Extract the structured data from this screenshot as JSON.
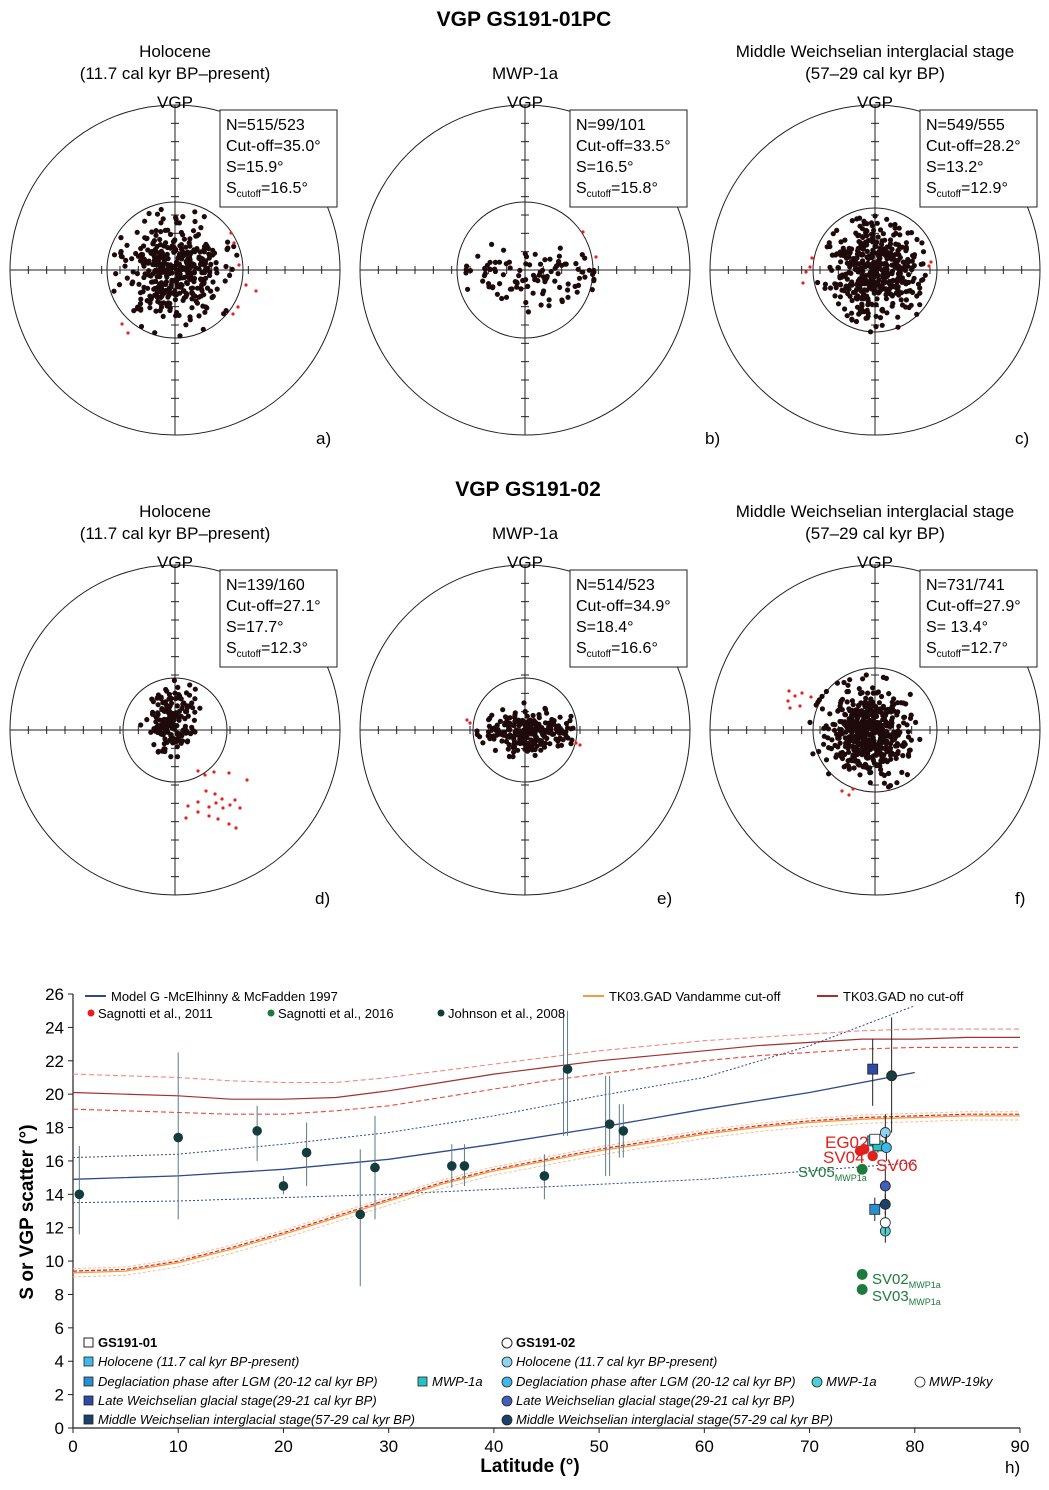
{
  "sections": [
    {
      "title": "VGP GS191-01PC"
    },
    {
      "title": "VGP GS191-02"
    }
  ],
  "panels": [
    {
      "header1": "Holocene",
      "header2": "(11.7 cal kyr BP–present)",
      "vgp": "VGP",
      "N": "N=515/523",
      "cutoff": "Cut-off=35.0°",
      "S": "S=15.9°",
      "scut_pre": "S",
      "scut_sub": "cutoff",
      "scut_val": "=16.5°",
      "letter": "a)",
      "stats": {
        "n_kept": 515,
        "n_total": 523,
        "cutoff_deg": 35.0,
        "S_deg": 15.9,
        "S_cutoff_deg": 16.5
      }
    },
    {
      "header1": "",
      "header2": "MWP-1a",
      "vgp": "VGP",
      "N": "N=99/101",
      "cutoff": "Cut-off=33.5°",
      "S": "S=16.5°",
      "scut_pre": "S",
      "scut_sub": "cutoff",
      "scut_val": "=15.8°",
      "letter": "b)",
      "stats": {
        "n_kept": 99,
        "n_total": 101,
        "cutoff_deg": 33.5,
        "S_deg": 16.5,
        "S_cutoff_deg": 15.8
      }
    },
    {
      "header1": "Middle Weichselian interglacial stage",
      "header2": "(57–29 cal kyr BP)",
      "vgp": "VGP",
      "N": "N=549/555",
      "cutoff": "Cut-off=28.2°",
      "S": "S=13.2°",
      "scut_pre": "S",
      "scut_sub": "cutoff",
      "scut_val": "=12.9°",
      "letter": "c)",
      "stats": {
        "n_kept": 549,
        "n_total": 555,
        "cutoff_deg": 28.2,
        "S_deg": 13.2,
        "S_cutoff_deg": 12.9
      }
    },
    {
      "header1": "Holocene",
      "header2": "(11.7 cal kyr BP–present)",
      "vgp": "VGP",
      "N": "N=139/160",
      "cutoff": "Cut-off=27.1°",
      "S": "S=17.7°",
      "scut_pre": "S",
      "scut_sub": "cutoff",
      "scut_val": "=12.3°",
      "letter": "d)",
      "stats": {
        "n_kept": 139,
        "n_total": 160,
        "cutoff_deg": 27.1,
        "S_deg": 17.7,
        "S_cutoff_deg": 12.3
      }
    },
    {
      "header1": "",
      "header2": "MWP-1a",
      "vgp": "VGP",
      "N": "N=514/523",
      "cutoff": "Cut-off=34.9°",
      "S": "S=18.4°",
      "scut_pre": "S",
      "scut_sub": "cutoff",
      "scut_val": "=16.6°",
      "letter": "e)",
      "stats": {
        "n_kept": 514,
        "n_total": 523,
        "cutoff_deg": 34.9,
        "S_deg": 18.4,
        "S_cutoff_deg": 16.6
      }
    },
    {
      "header1": "Middle Weichselian interglacial stage",
      "header2": "(57–29 cal kyr BP)",
      "vgp": "VGP",
      "N": "N=731/741",
      "cutoff": "Cut-off=27.9°",
      "S": "S= 13.4°",
      "scut_pre": "S",
      "scut_sub": "cutoff",
      "scut_val": "=12.7°",
      "letter": "f)",
      "stats": {
        "n_kept": 731,
        "n_total": 741,
        "cutoff_deg": 27.9,
        "S_deg": 13.4,
        "S_cutoff_deg": 12.7
      }
    }
  ],
  "chart_data": {
    "type": "scatter",
    "ylabel": "S or VGP scatter (°)",
    "xlabel": "Latitude (°)",
    "panel_letter": "h)",
    "xlim": [
      0,
      90
    ],
    "ylim": [
      0,
      26
    ],
    "xticks": [
      "0",
      "10",
      "20",
      "30",
      "40",
      "50",
      "60",
      "70",
      "80",
      "90"
    ],
    "yticks": [
      "0",
      "2",
      "4",
      "6",
      "8",
      "10",
      "12",
      "14",
      "16",
      "18",
      "20",
      "22",
      "24",
      "26"
    ],
    "top_legend": [
      {
        "label": "Model G -McElhinny & McFadden 1997",
        "color": "#2e4a8a",
        "kind": "line"
      },
      {
        "label": "TK03.GAD Vandamme cut-off",
        "color": "#f39a3c",
        "kind": "line"
      },
      {
        "label": "TK03.GAD no cut-off",
        "color": "#a2302c",
        "kind": "line"
      },
      {
        "label": "Sagnotti et al., 2011",
        "color": "#e0211d",
        "kind": "dot"
      },
      {
        "label": "Sagnotti et al., 2016",
        "color": "#1d7a3c",
        "kind": "dot"
      },
      {
        "label": "Johnson et al., 2008",
        "color": "#143c3c",
        "kind": "dot"
      }
    ],
    "model_g": {
      "x": [
        0,
        10,
        20,
        30,
        40,
        50,
        60,
        70,
        80
      ],
      "mean": [
        14.9,
        15.1,
        15.5,
        16.1,
        17.0,
        18.0,
        19.1,
        20.1,
        21.3
      ],
      "upper": [
        16.2,
        16.4,
        17.0,
        17.7,
        18.7,
        19.9,
        21.0,
        22.9,
        25.3
      ],
      "lower": [
        13.5,
        13.6,
        13.8,
        14.0,
        14.3,
        14.6,
        14.9,
        15.4,
        15.9
      ]
    },
    "tk03_vandamme": {
      "x": [
        0,
        5,
        10,
        15,
        20,
        25,
        30,
        35,
        40,
        45,
        50,
        55,
        60,
        65,
        70,
        75,
        80,
        85,
        90
      ],
      "mean": [
        9.3,
        9.4,
        9.9,
        10.7,
        11.6,
        12.6,
        13.6,
        14.6,
        15.4,
        16.0,
        16.6,
        17.1,
        17.6,
        18.0,
        18.3,
        18.5,
        18.6,
        18.7,
        18.7
      ]
    },
    "tk03_nocut": {
      "x": [
        0,
        5,
        10,
        15,
        20,
        25,
        30,
        35,
        40,
        45,
        50,
        55,
        60,
        65,
        70,
        75,
        80,
        85,
        90
      ],
      "mean": [
        20.1,
        20.0,
        19.9,
        19.7,
        19.7,
        19.8,
        20.2,
        20.7,
        21.2,
        21.6,
        22.0,
        22.3,
        22.6,
        22.9,
        23.1,
        23.3,
        23.3,
        23.4,
        23.4
      ],
      "upper": [
        21.2,
        21.1,
        21.0,
        20.8,
        20.7,
        20.7,
        21.0,
        21.4,
        21.8,
        22.2,
        22.6,
        22.9,
        23.2,
        23.4,
        23.6,
        23.8,
        23.9,
        23.9,
        23.9
      ],
      "lower": [
        19.1,
        19.0,
        18.9,
        18.8,
        18.8,
        19.0,
        19.3,
        19.8,
        20.3,
        20.8,
        21.2,
        21.6,
        22.0,
        22.3,
        22.5,
        22.7,
        22.8,
        22.8,
        22.8
      ]
    },
    "johnson_2008": [
      {
        "x": 0.6,
        "y": 14.0,
        "lo": 11.6,
        "hi": 16.9
      },
      {
        "x": 10.0,
        "y": 17.4,
        "lo": 12.5,
        "hi": 22.5
      },
      {
        "x": 17.5,
        "y": 17.8,
        "lo": 16.0,
        "hi": 19.3
      },
      {
        "x": 20.0,
        "y": 14.5,
        "lo": 14.0,
        "hi": 15.1
      },
      {
        "x": 22.2,
        "y": 16.5,
        "lo": 14.5,
        "hi": 18.3
      },
      {
        "x": 27.3,
        "y": 12.8,
        "lo": 8.5,
        "hi": 16.7
      },
      {
        "x": 28.7,
        "y": 15.6,
        "lo": 12.5,
        "hi": 18.7
      },
      {
        "x": 36.0,
        "y": 15.7,
        "lo": 14.4,
        "hi": 17.0
      },
      {
        "x": 37.2,
        "y": 15.7,
        "lo": 14.5,
        "hi": 17.0
      },
      {
        "x": 44.8,
        "y": 15.1,
        "lo": 13.7,
        "hi": 16.4
      },
      {
        "x": 47.0,
        "y": 21.5,
        "lo": 17.5,
        "hi": 25.0
      },
      {
        "x": 51.0,
        "y": 18.2,
        "lo": 15.1,
        "hi": 21.1
      },
      {
        "x": 52.3,
        "y": 17.8,
        "lo": 16.2,
        "hi": 19.4
      }
    ],
    "sagnotti_2011": [
      {
        "x": 74.8,
        "y": 16.6,
        "label": "EG02"
      },
      {
        "x": 75.2,
        "y": 16.7,
        "label": "SV04"
      },
      {
        "x": 76.0,
        "y": 16.3,
        "label": "SV06"
      }
    ],
    "sagnotti_2016": [
      {
        "x": 75.0,
        "y": 15.5,
        "label": "SV05",
        "sub": "MWP1a"
      },
      {
        "x": 75.0,
        "y": 9.2,
        "label": "SV02",
        "sub": "MWP1a"
      },
      {
        "x": 75.0,
        "y": 8.3,
        "label": "SV03",
        "sub": "MWP1a"
      }
    ],
    "gs191_01": [
      {
        "x": 76.0,
        "y": 17.2,
        "color": "#3fb9e8",
        "shape": "square",
        "lo": 16.8,
        "hi": 17.6
      },
      {
        "x": 76.2,
        "y": 13.1,
        "color": "#2a8fd0",
        "shape": "square",
        "lo": 12.4,
        "hi": 13.8
      },
      {
        "x": 76.5,
        "y": 16.9,
        "color": "#26c2c2",
        "shape": "square",
        "lo": 16.5,
        "hi": 17.3
      },
      {
        "x": 76.0,
        "y": 21.5,
        "color": "#2e4aa6",
        "shape": "square",
        "lo": 19.3,
        "hi": 23.3
      },
      {
        "x": 76.2,
        "y": 17.3,
        "color": "#ffffff",
        "shape": "square",
        "lo": 17.0,
        "hi": 17.6
      }
    ],
    "gs191_02": [
      {
        "x": 77.2,
        "y": 17.7,
        "color": "#8fd3ef",
        "shape": "circle",
        "lo": 16.6,
        "hi": 18.8
      },
      {
        "x": 77.3,
        "y": 16.8,
        "color": "#3fb9e8",
        "shape": "circle",
        "lo": 16.0,
        "hi": 17.6
      },
      {
        "x": 77.2,
        "y": 11.8,
        "color": "#4fd0d0",
        "shape": "circle",
        "lo": 11.1,
        "hi": 12.5
      },
      {
        "x": 77.2,
        "y": 12.3,
        "color": "#ffffff",
        "shape": "circle",
        "lo": 11.6,
        "hi": 13.0
      },
      {
        "x": 77.2,
        "y": 14.5,
        "color": "#3f5fb8",
        "shape": "circle",
        "lo": 13.5,
        "hi": 15.5
      },
      {
        "x": 77.2,
        "y": 13.4,
        "color": "#19436b",
        "shape": "circle",
        "lo": 12.8,
        "hi": 14.0
      },
      {
        "x": 77.8,
        "y": 21.1,
        "color": "#1a3f3f",
        "shape": "circle",
        "lo": 17.7,
        "hi": 24.6
      }
    ],
    "legend_01": {
      "title": "GS191-01",
      "items": [
        "Holocene (11.7 cal kyr BP-present)",
        "Deglaciation phase after LGM (20-12 cal kyr BP)",
        "MWP-1a",
        "Late Weichselian glacial stage(29-21 cal kyr BP)",
        "Middle Weichselian interglacial stage(57-29 cal kyr BP)"
      ],
      "colors": [
        "#3fb9e8",
        "#2a8fd0",
        "#26c2c2",
        "#2e4aa6",
        "#19436b"
      ]
    },
    "legend_02": {
      "title": "GS191-02",
      "items": [
        "Holocene (11.7 cal kyr BP-present)",
        "Deglaciation phase after LGM (20-12 cal kyr BP)",
        "MWP-1a",
        "MWP-19ky",
        "Late Weichselian glacial stage(29-21 cal kyr BP)",
        "Middle Weichselian interglacial stage(57-29 cal kyr BP)"
      ],
      "colors": [
        "#8fd3ef",
        "#3fb9e8",
        "#4fd0d0",
        "#ffffff",
        "#3f5fb8",
        "#19436b"
      ]
    }
  }
}
